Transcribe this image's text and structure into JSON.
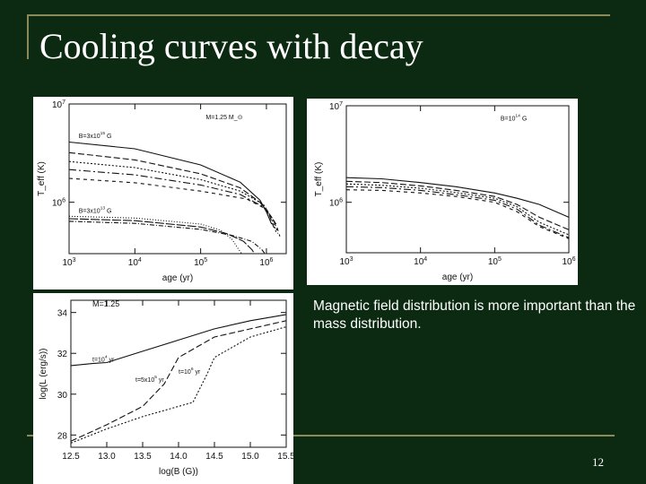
{
  "slide": {
    "title": "Cooling curves with decay",
    "caption": "Magnetic field distribution is more important than the mass distribution.",
    "page_number": "12"
  },
  "chart_data": [
    {
      "id": "a",
      "type": "line",
      "xlabel": "age (yr)",
      "ylabel": "T_eff (K)",
      "xscale": "log",
      "yscale": "log",
      "xlim": [
        1000,
        2000000
      ],
      "ylim": [
        300000,
        10000000
      ],
      "x_ticks": [
        {
          "value": 1000,
          "label": "10^3"
        },
        {
          "value": 10000,
          "label": "10^4"
        },
        {
          "value": 100000,
          "label": "10^5"
        },
        {
          "value": 1000000,
          "label": "10^6"
        }
      ],
      "y_ticks": [
        {
          "value": 1000000,
          "label": "10^6"
        },
        {
          "value": 10000000,
          "label": "10^7"
        }
      ],
      "annotations": [
        {
          "text": "M=1.25 M_⊙",
          "x": 120000,
          "y": 7000000
        },
        {
          "text": "B=3x10^15 G",
          "x": 1400,
          "y": 4500000
        },
        {
          "text": "B=3x10^13 G",
          "x": 1400,
          "y": 780000
        }
      ],
      "series": [
        {
          "x": [
            1000,
            10000,
            100000,
            400000,
            800000,
            1000000,
            1200000
          ],
          "y": [
            4100000,
            3500000,
            2400000,
            1600000,
            1050000,
            800000,
            600000
          ]
        },
        {
          "x": [
            1000,
            10000,
            100000,
            400000,
            800000,
            1100000,
            1300000
          ],
          "y": [
            3200000,
            2700000,
            1950000,
            1400000,
            1000000,
            750000,
            550000
          ]
        },
        {
          "x": [
            1000,
            10000,
            100000,
            400000,
            900000,
            1200000,
            1400000
          ],
          "y": [
            2600000,
            2250000,
            1700000,
            1300000,
            950000,
            700000,
            500000
          ]
        },
        {
          "x": [
            1000,
            10000,
            100000,
            400000,
            900000,
            1300000,
            1500000
          ],
          "y": [
            2150000,
            1900000,
            1500000,
            1200000,
            900000,
            650000,
            480000
          ]
        },
        {
          "x": [
            1000,
            10000,
            100000,
            500000,
            1000000,
            1400000,
            1600000
          ],
          "y": [
            1750000,
            1580000,
            1300000,
            1080000,
            850000,
            600000,
            450000
          ]
        },
        {
          "x": [
            1000,
            10000,
            100000,
            200000,
            300000,
            380000,
            420000
          ],
          "y": [
            720000,
            690000,
            600000,
            520000,
            420000,
            330000,
            300000
          ]
        },
        {
          "x": [
            1000,
            10000,
            100000,
            250000,
            450000,
            600000,
            660000
          ],
          "y": [
            680000,
            650000,
            560000,
            480000,
            400000,
            330000,
            300000
          ]
        },
        {
          "x": [
            1000,
            10000,
            100000,
            300000,
            600000,
            850000,
            950000
          ],
          "y": [
            640000,
            610000,
            530000,
            460000,
            400000,
            330000,
            300000
          ]
        }
      ]
    },
    {
      "id": "b",
      "type": "line",
      "xlabel": "age (yr)",
      "ylabel": "T_eff (K)",
      "xscale": "log",
      "yscale": "log",
      "xlim": [
        1000,
        1000000
      ],
      "ylim": [
        300000,
        10000000
      ],
      "x_ticks": [
        {
          "value": 1000,
          "label": "10^3"
        },
        {
          "value": 10000,
          "label": "10^4"
        },
        {
          "value": 100000,
          "label": "10^5"
        },
        {
          "value": 1000000,
          "label": "10^6"
        }
      ],
      "y_ticks": [
        {
          "value": 1000000,
          "label": "10^6"
        },
        {
          "value": 10000000,
          "label": "10^7"
        }
      ],
      "annotations": [
        {
          "text": "B=10^14 G",
          "x": 120000,
          "y": 7000000
        }
      ],
      "series": [
        {
          "x": [
            1000,
            3000,
            10000,
            30000,
            100000,
            200000,
            400000,
            1000000
          ],
          "y": [
            1800000,
            1750000,
            1600000,
            1450000,
            1250000,
            1100000,
            950000,
            700000
          ]
        },
        {
          "x": [
            1000,
            3000,
            10000,
            30000,
            100000,
            200000,
            400000,
            1000000
          ],
          "y": [
            1650000,
            1600000,
            1480000,
            1330000,
            1150000,
            950000,
            700000,
            520000
          ]
        },
        {
          "x": [
            1000,
            3000,
            10000,
            30000,
            100000,
            200000,
            400000,
            1000000
          ],
          "y": [
            1550000,
            1500000,
            1400000,
            1260000,
            1100000,
            900000,
            620000,
            460000
          ]
        },
        {
          "x": [
            1000,
            3000,
            10000,
            30000,
            100000,
            200000,
            400000,
            1000000
          ],
          "y": [
            1450000,
            1420000,
            1330000,
            1200000,
            1050000,
            850000,
            580000,
            430000
          ]
        },
        {
          "x": [
            1000,
            3000,
            10000,
            30000,
            100000,
            200000,
            400000,
            1000000
          ],
          "y": [
            1350000,
            1330000,
            1250000,
            1150000,
            1000000,
            800000,
            560000,
            420000
          ]
        }
      ]
    },
    {
      "id": "c",
      "type": "line",
      "xlabel": "log(B (G))",
      "ylabel": "log(L (erg/s))",
      "xlim": [
        12.5,
        15.5
      ],
      "ylim": [
        27.4,
        34.6
      ],
      "x_ticks": [
        {
          "value": 12.5,
          "label": "12.5"
        },
        {
          "value": 13.0,
          "label": "13.0"
        },
        {
          "value": 13.5,
          "label": "13.5"
        },
        {
          "value": 14.0,
          "label": "14.0"
        },
        {
          "value": 14.5,
          "label": "14.5"
        },
        {
          "value": 15.0,
          "label": "15.0"
        },
        {
          "value": 15.5,
          "label": "15.5"
        }
      ],
      "y_ticks": [
        {
          "value": 28,
          "label": "28"
        },
        {
          "value": 30,
          "label": "30"
        },
        {
          "value": 32,
          "label": "32"
        },
        {
          "value": 34,
          "label": "34"
        }
      ],
      "annotations": [
        {
          "text": "M=1.25",
          "x": 12.8,
          "y": 34.3
        },
        {
          "text": "t=10^4 yr",
          "x": 12.8,
          "y": 31.6
        },
        {
          "text": "t=5x10^5 yr",
          "x": 13.4,
          "y": 30.6
        },
        {
          "text": "t=10^6 yr",
          "x": 14.0,
          "y": 31.0
        }
      ],
      "series": [
        {
          "name": "t=10^4 yr",
          "x": [
            12.5,
            12.8,
            13.0,
            13.5,
            14.0,
            14.5,
            15.0,
            15.5
          ],
          "y": [
            31.4,
            31.5,
            31.55,
            32.1,
            32.65,
            33.2,
            33.6,
            33.9
          ]
        },
        {
          "name": "t=5x10^5 yr",
          "x": [
            12.5,
            13.0,
            13.5,
            13.8,
            14.0,
            14.3,
            14.5,
            15.0,
            15.5
          ],
          "y": [
            27.7,
            28.5,
            29.4,
            30.5,
            31.8,
            32.4,
            32.8,
            33.2,
            33.6
          ]
        },
        {
          "name": "t=10^6 yr",
          "x": [
            12.5,
            13.0,
            13.5,
            14.0,
            14.2,
            14.4,
            14.5,
            15.0,
            15.5
          ],
          "y": [
            27.6,
            28.3,
            28.9,
            29.4,
            29.6,
            31.0,
            31.8,
            32.8,
            33.3
          ]
        }
      ]
    }
  ]
}
